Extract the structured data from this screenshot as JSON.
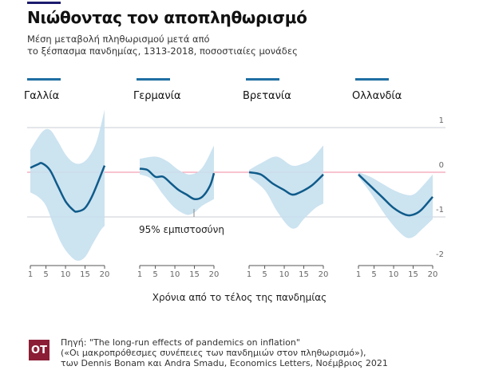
{
  "title": "Νιώθοντας τον αποπληθωρισμό",
  "subtitle_line1": "Μέση μεταβολή πληθωρισμού μετά από",
  "subtitle_line2": "το ξέσπασμα πανδημίας, 1313-2018, ποσοστιαίες μονάδες",
  "source_line1": "Πηγή: \"The long-run effects of pandemics on inflation\"",
  "source_line2": "(«Οι μακροπρόθεσμες συνέπειες των πανδημιών στον πληθωρισμό»),",
  "source_line3": "των Dennis Bonam και Andra Smadu, Economics Letters, Νοέμβριος 2021",
  "logo": "OT",
  "colors": {
    "line": "#0f5b8a",
    "band": "#c6e0ee",
    "zero": "#f08aa0",
    "grid": "#c9ced6",
    "header_bar": "#1f6fa3"
  },
  "chart_data": {
    "type": "line",
    "xlabel": "Χρόνια από το τέλος της πανδημίας",
    "ylim": [
      -2,
      1
    ],
    "yticks": [
      1,
      0,
      -1,
      -2
    ],
    "xticks": [
      1,
      5,
      10,
      15,
      20
    ],
    "annotation": "95% εμπιστοσύνη",
    "panels": [
      {
        "name": "Γαλλία",
        "mean": [
          [
            1,
            0.1
          ],
          [
            3,
            0.18
          ],
          [
            4,
            0.2
          ],
          [
            6,
            0.05
          ],
          [
            8,
            -0.3
          ],
          [
            10,
            -0.65
          ],
          [
            12,
            -0.85
          ],
          [
            13,
            -0.88
          ],
          [
            15,
            -0.8
          ],
          [
            17,
            -0.5
          ],
          [
            20,
            0.15
          ]
        ],
        "upper": [
          [
            1,
            0.5
          ],
          [
            4,
            0.9
          ],
          [
            6,
            0.95
          ],
          [
            8,
            0.7
          ],
          [
            10,
            0.4
          ],
          [
            12,
            0.22
          ],
          [
            14,
            0.2
          ],
          [
            16,
            0.35
          ],
          [
            18,
            0.7
          ],
          [
            20,
            1.4
          ]
        ],
        "lower": [
          [
            1,
            -0.45
          ],
          [
            3,
            -0.55
          ],
          [
            5,
            -0.75
          ],
          [
            7,
            -1.2
          ],
          [
            9,
            -1.6
          ],
          [
            11,
            -1.85
          ],
          [
            13,
            -1.98
          ],
          [
            15,
            -1.9
          ],
          [
            17,
            -1.6
          ],
          [
            19,
            -1.3
          ],
          [
            20,
            -1.2
          ]
        ]
      },
      {
        "name": "Γερμανία",
        "mean": [
          [
            1,
            0.08
          ],
          [
            3,
            0.05
          ],
          [
            5,
            -0.1
          ],
          [
            7,
            -0.1
          ],
          [
            9,
            -0.25
          ],
          [
            11,
            -0.4
          ],
          [
            13,
            -0.5
          ],
          [
            15,
            -0.6
          ],
          [
            17,
            -0.55
          ],
          [
            19,
            -0.3
          ],
          [
            20,
            -0.02
          ]
        ],
        "upper": [
          [
            1,
            0.3
          ],
          [
            5,
            0.35
          ],
          [
            8,
            0.25
          ],
          [
            11,
            0.05
          ],
          [
            14,
            -0.05
          ],
          [
            17,
            0.1
          ],
          [
            20,
            0.6
          ]
        ],
        "lower": [
          [
            1,
            -0.05
          ],
          [
            4,
            -0.15
          ],
          [
            7,
            -0.5
          ],
          [
            10,
            -0.8
          ],
          [
            13,
            -0.95
          ],
          [
            15,
            -0.9
          ],
          [
            17,
            -0.75
          ],
          [
            20,
            -0.6
          ]
        ]
      },
      {
        "name": "Βρετανία",
        "mean": [
          [
            1,
            0
          ],
          [
            4,
            -0.05
          ],
          [
            7,
            -0.25
          ],
          [
            10,
            -0.4
          ],
          [
            12,
            -0.5
          ],
          [
            14,
            -0.45
          ],
          [
            17,
            -0.3
          ],
          [
            20,
            -0.05
          ]
        ],
        "upper": [
          [
            1,
            0.05
          ],
          [
            4,
            0.2
          ],
          [
            8,
            0.35
          ],
          [
            12,
            0.15
          ],
          [
            15,
            0.2
          ],
          [
            17,
            0.3
          ],
          [
            20,
            0.6
          ]
        ],
        "lower": [
          [
            1,
            -0.1
          ],
          [
            5,
            -0.4
          ],
          [
            8,
            -0.85
          ],
          [
            11,
            -1.2
          ],
          [
            13,
            -1.25
          ],
          [
            15,
            -1.05
          ],
          [
            18,
            -0.8
          ],
          [
            20,
            -0.7
          ]
        ]
      },
      {
        "name": "Ολλανδία",
        "mean": [
          [
            1,
            -0.05
          ],
          [
            4,
            -0.3
          ],
          [
            7,
            -0.55
          ],
          [
            10,
            -0.8
          ],
          [
            13,
            -0.95
          ],
          [
            15,
            -0.95
          ],
          [
            17,
            -0.85
          ],
          [
            20,
            -0.55
          ]
        ],
        "upper": [
          [
            1,
            0
          ],
          [
            4,
            -0.1
          ],
          [
            7,
            -0.25
          ],
          [
            10,
            -0.4
          ],
          [
            13,
            -0.5
          ],
          [
            15,
            -0.5
          ],
          [
            17,
            -0.35
          ],
          [
            20,
            -0.05
          ]
        ],
        "lower": [
          [
            1,
            -0.1
          ],
          [
            4,
            -0.45
          ],
          [
            7,
            -0.85
          ],
          [
            10,
            -1.2
          ],
          [
            13,
            -1.45
          ],
          [
            15,
            -1.45
          ],
          [
            17,
            -1.3
          ],
          [
            20,
            -1.05
          ]
        ]
      }
    ]
  }
}
